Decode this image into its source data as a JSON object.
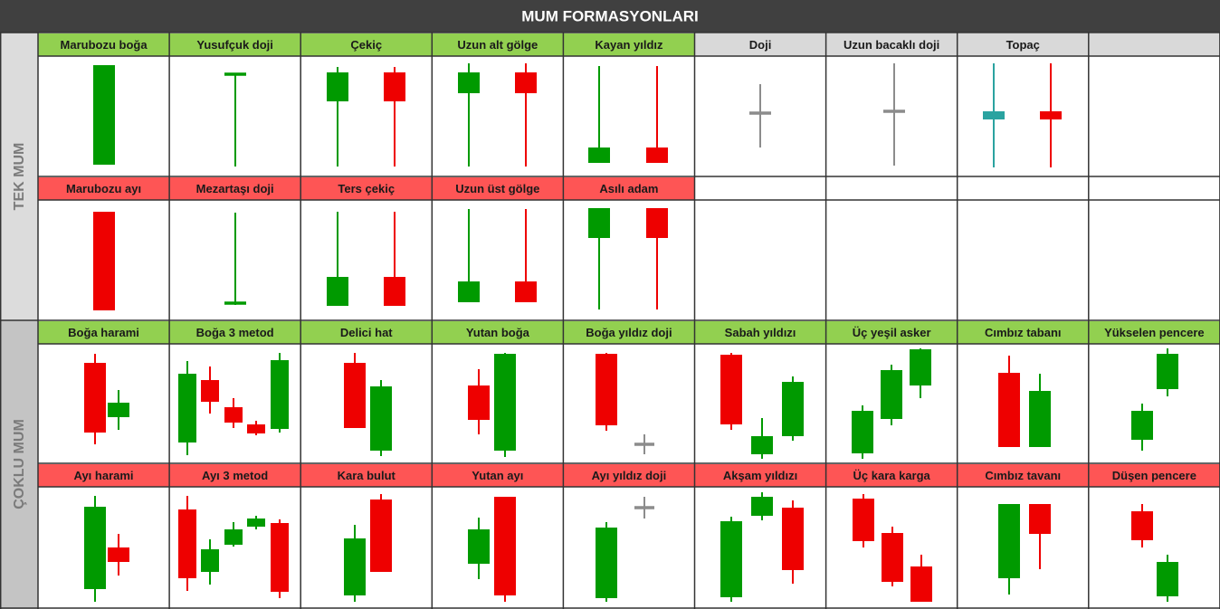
{
  "title": "MUM FORMASYONLARI",
  "sections": [
    "TEK MUM",
    "ÇOKLU MUM"
  ],
  "rows": [
    [
      "Marubozu boğa",
      "Yusufçuk doji",
      "Çekiç",
      "Uzun alt gölge",
      "Kayan yıldız",
      "Doji",
      "Uzun bacaklı doji",
      "Topaç"
    ],
    [
      "Marubozu ayı",
      "Mezartaşı doji",
      "Ters çekiç",
      "Uzun üst gölge",
      "Asılı adam"
    ],
    [
      "Boğa harami",
      "Boğa 3 metod",
      "Delici hat",
      "Yutan boğa",
      "Boğa yıldız doji",
      "Sabah yıldızı",
      "Üç yeşil asker",
      "Cımbız tabanı",
      "Yükselen pencere"
    ],
    [
      "Ayı harami",
      "Ayı 3 metod",
      "Kara bulut",
      "Yutan ayı",
      "Ayı yıldız doji",
      "Akşam yıldızı",
      "Üç kara karga",
      "Cımbız tavanı",
      "Düşen pencere"
    ]
  ]
}
